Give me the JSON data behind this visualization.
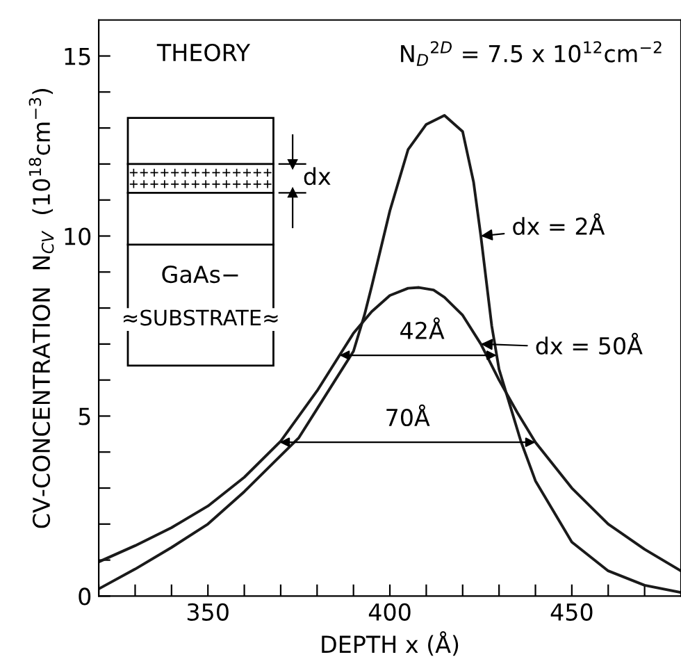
{
  "chart_data": {
    "type": "line",
    "xlabel": "DEPTH x (Å)",
    "ylabel": "CV-CONCENTRATION  N$_{CV}$  (10$^{18}$cm$^{−3}$)",
    "xlim": [
      320,
      480
    ],
    "ylim": [
      0,
      16
    ],
    "xticks": [
      {
        "value": 320,
        "label": null
      },
      {
        "value": 330,
        "label": null
      },
      {
        "value": 340,
        "label": null
      },
      350,
      {
        "value": 360,
        "label": null
      },
      {
        "value": 370,
        "label": null
      },
      {
        "value": 380,
        "label": null
      },
      {
        "value": 390,
        "label": null
      },
      400,
      {
        "value": 410,
        "label": null
      },
      {
        "value": 420,
        "label": null
      },
      {
        "value": 430,
        "label": null
      },
      {
        "value": 440,
        "label": null
      },
      450,
      {
        "value": 460,
        "label": null
      },
      {
        "value": 470,
        "label": null
      }
    ],
    "yticks": [
      0,
      {
        "value": 1,
        "label": null
      },
      {
        "value": 2,
        "label": null
      },
      {
        "value": 3,
        "label": null
      },
      {
        "value": 4,
        "label": null
      },
      5,
      {
        "value": 6,
        "label": null
      },
      {
        "value": 7,
        "label": null
      },
      {
        "value": 8,
        "label": null
      },
      {
        "value": 9,
        "label": null
      },
      10,
      {
        "value": 11,
        "label": null
      },
      {
        "value": 12,
        "label": null
      },
      {
        "value": 13,
        "label": null
      },
      {
        "value": 14,
        "label": null
      },
      15
    ],
    "grid": false,
    "legend": false,
    "marker": "none",
    "line_style": "solid",
    "series": [
      {
        "name": "dx = 2Å",
        "color": "#1a1a1a",
        "x": [
          320,
          330,
          340,
          350,
          360,
          370,
          375,
          380,
          385,
          390,
          393,
          395,
          400,
          405,
          410,
          415,
          420,
          423,
          425,
          428,
          430,
          433,
          436,
          440,
          450,
          460,
          470,
          480
        ],
        "values": [
          0.2,
          0.75,
          1.35,
          2.0,
          2.9,
          3.9,
          4.4,
          5.2,
          6.0,
          6.8,
          7.8,
          8.6,
          10.7,
          12.4,
          13.1,
          13.35,
          12.9,
          11.5,
          10.0,
          7.5,
          6.3,
          5.3,
          4.3,
          3.2,
          1.5,
          0.7,
          0.3,
          0.1
        ]
      },
      {
        "name": "dx = 50Å",
        "color": "#1a1a1a",
        "x": [
          320,
          330,
          340,
          350,
          360,
          370,
          380,
          390,
          395,
          400,
          405,
          408,
          412,
          415,
          420,
          425,
          430,
          435,
          440,
          450,
          460,
          470,
          480
        ],
        "values": [
          0.95,
          1.4,
          1.9,
          2.5,
          3.3,
          4.3,
          5.7,
          7.3,
          7.9,
          8.35,
          8.55,
          8.57,
          8.5,
          8.3,
          7.8,
          7.0,
          6.0,
          5.1,
          4.27,
          3.0,
          2.0,
          1.3,
          0.7
        ]
      }
    ],
    "annotations": [
      "THEORY",
      "N$_{D}$$^{2D}$ = 7.5 x 10$^{12}$cm$^{−2}$",
      "GaAs−",
      "≈SUBSTRATE≈",
      "dx",
      "42Å",
      "70Å"
    ]
  }
}
